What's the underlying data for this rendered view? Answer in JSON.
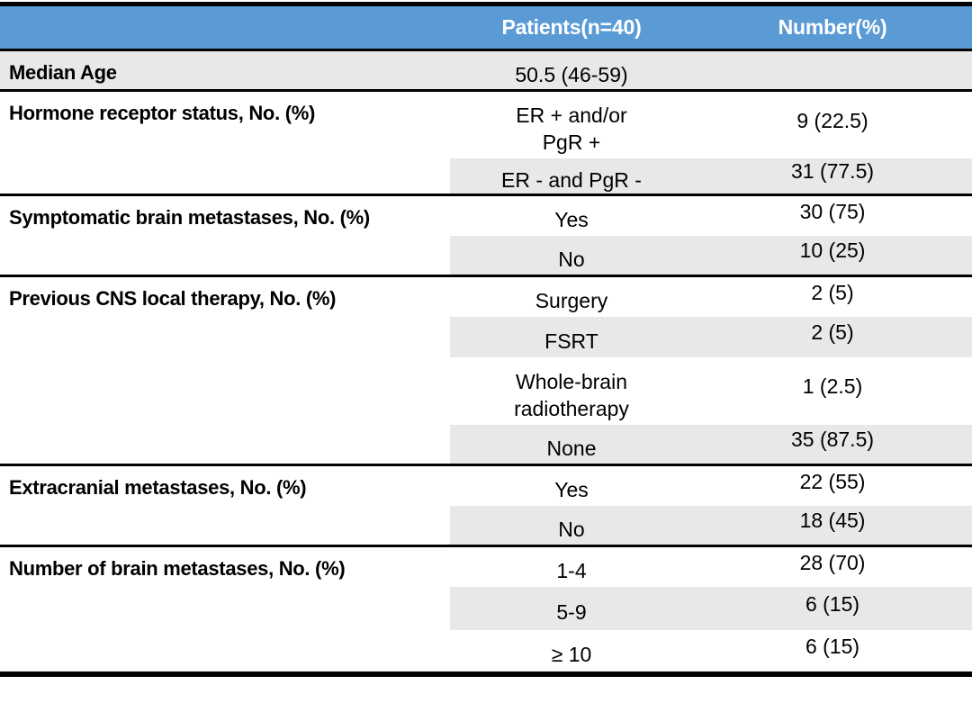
{
  "header": {
    "patients_label": "Patients(n=40)",
    "number_label": "Number(%)"
  },
  "colors": {
    "header_bg": "#5b9bd5",
    "header_text": "#ffffff",
    "row_shade": "#e8e8e8",
    "border": "#000000"
  },
  "groups": [
    {
      "label": "Median Age",
      "rows": [
        {
          "value": "50.5 (46-59)",
          "number": ""
        }
      ]
    },
    {
      "label": "Hormone receptor status, No. (%)",
      "rows": [
        {
          "value": "ER + and/or\nPgR +",
          "number": "9 (22.5)"
        },
        {
          "value": "ER - and PgR -",
          "number": "31 (77.5)"
        }
      ]
    },
    {
      "label": "Symptomatic brain metastases, No. (%)",
      "rows": [
        {
          "value": "Yes",
          "number": "30 (75)"
        },
        {
          "value": "No",
          "number": "10 (25)"
        }
      ]
    },
    {
      "label": "Previous CNS local therapy, No. (%)",
      "rows": [
        {
          "value": "Surgery",
          "number": "2 (5)"
        },
        {
          "value": "FSRT",
          "number": "2 (5)"
        },
        {
          "value": "Whole-brain\nradiotherapy",
          "number": "1 (2.5)"
        },
        {
          "value": "None",
          "number": "35 (87.5)"
        }
      ]
    },
    {
      "label": "Extracranial metastases, No. (%)",
      "rows": [
        {
          "value": "Yes",
          "number": "22 (55)"
        },
        {
          "value": "No",
          "number": "18 (45)"
        }
      ]
    },
    {
      "label": "Number of brain metastases, No. (%)",
      "rows": [
        {
          "value": "1-4",
          "number": "28 (70)"
        },
        {
          "value": "5-9",
          "number": "6 (15)"
        },
        {
          "value": "≥ 10",
          "number": "6 (15)"
        }
      ]
    }
  ]
}
